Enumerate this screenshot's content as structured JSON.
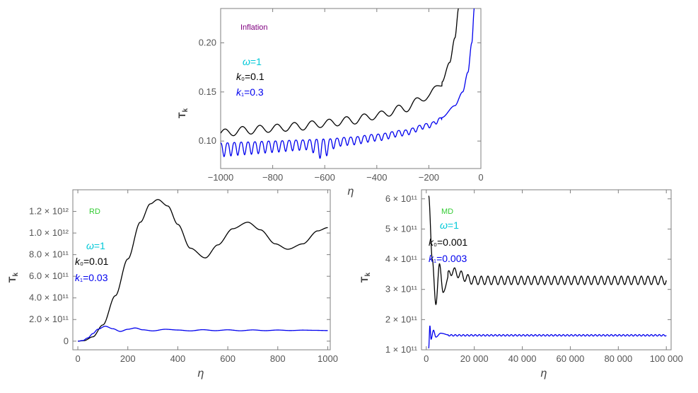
{
  "chart_data": [
    {
      "id": "inflation",
      "type": "line",
      "title": "Inflation",
      "title_color": "#800080",
      "xlabel": "η",
      "ylabel": "T_k",
      "xlim": [
        -1000,
        0
      ],
      "ylim": [
        0.072,
        0.235
      ],
      "xticks": [
        -1000,
        -800,
        -600,
        -400,
        -200,
        0
      ],
      "xtick_labels": [
        "−1000",
        "−800",
        "−600",
        "−400",
        "−200",
        "0"
      ],
      "yticks": [
        0.1,
        0.15,
        0.2
      ],
      "ytick_labels": [
        "0.10",
        "0.15",
        "0.20"
      ],
      "annotations": [
        {
          "name": "omega",
          "text": "ω=1",
          "color": "#00c8d8"
        },
        {
          "name": "k0",
          "text": "k₀=0.1",
          "color": "#000000"
        },
        {
          "name": "k1",
          "text": "k₁=0.3",
          "color": "#0000ee"
        }
      ],
      "series": [
        {
          "name": "k0=0.1",
          "color": "#000000",
          "x": [
            -1000,
            -900,
            -800,
            -700,
            -600,
            -500,
            -400,
            -300,
            -200,
            -150,
            -120,
            -100,
            -85
          ],
          "y": [
            0.108,
            0.111,
            0.113,
            0.115,
            0.118,
            0.121,
            0.126,
            0.133,
            0.146,
            0.16,
            0.18,
            0.205,
            0.236
          ]
        },
        {
          "name": "k1=0.3",
          "color": "#0000ee",
          "x": [
            -1000,
            -900,
            -800,
            -700,
            -600,
            -500,
            -400,
            -300,
            -200,
            -150,
            -100,
            -70,
            -50,
            -35,
            -25
          ],
          "y": [
            0.098,
            0.099,
            0.1,
            0.101,
            0.102,
            0.104,
            0.107,
            0.111,
            0.118,
            0.124,
            0.136,
            0.15,
            0.17,
            0.2,
            0.236
          ]
        }
      ]
    },
    {
      "id": "rd",
      "type": "line",
      "title": "RD",
      "title_color": "#33cc33",
      "xlabel": "η",
      "ylabel": "T_k",
      "xlim": [
        -20,
        1010
      ],
      "ylim": [
        -80000000000.0,
        1400000000000.0
      ],
      "xticks": [
        0,
        200,
        400,
        600,
        800,
        1000
      ],
      "xtick_labels": [
        "0",
        "200",
        "400",
        "600",
        "800",
        "1000"
      ],
      "yticks": [
        0,
        200000000000.0,
        400000000000.0,
        600000000000.0,
        800000000000.0,
        1000000000000.0,
        1200000000000.0
      ],
      "ytick_labels": [
        "0",
        "2.0 × 10¹¹",
        "4.0 × 10¹¹",
        "6.0 × 10¹¹",
        "8.0 × 10¹¹",
        "1.0 × 10¹²",
        "1.2 × 10¹²"
      ],
      "annotations": [
        {
          "name": "omega",
          "text": "ω=1",
          "color": "#00c8d8"
        },
        {
          "name": "k0",
          "text": "k₀=0.01",
          "color": "#000000"
        },
        {
          "name": "k1",
          "text": "k₁=0.03",
          "color": "#0000ee"
        }
      ],
      "series": [
        {
          "name": "k0=0.01",
          "color": "#000000",
          "x": [
            0,
            25,
            60,
            100,
            150,
            200,
            250,
            290,
            320,
            360,
            400,
            450,
            510,
            560,
            620,
            680,
            730,
            790,
            840,
            900,
            960,
            1000
          ],
          "y": [
            0,
            5000000000.0,
            40000000000.0,
            150000000000.0,
            420000000000.0,
            760000000000.0,
            1100000000000.0,
            1270000000000.0,
            1310000000000.0,
            1250000000000.0,
            1080000000000.0,
            860000000000.0,
            770000000000.0,
            890000000000.0,
            1040000000000.0,
            1100000000000.0,
            1030000000000.0,
            900000000000.0,
            850000000000.0,
            900000000000.0,
            1020000000000.0,
            1050000000000.0
          ]
        },
        {
          "name": "k1=0.03",
          "color": "#0000ee",
          "x": [
            0,
            20,
            40,
            60,
            80,
            110,
            140,
            170,
            200,
            230,
            260,
            300,
            350,
            400,
            450,
            500,
            550,
            600,
            650,
            700,
            750,
            800,
            850,
            900,
            950,
            1000
          ],
          "y": [
            0,
            6000000000.0,
            30000000000.0,
            70000000000.0,
            110000000000.0,
            138000000000.0,
            115000000000.0,
            90000000000.0,
            110000000000.0,
            122000000000.0,
            105000000000.0,
            95000000000.0,
            110000000000.0,
            103000000000.0,
            95000000000.0,
            106000000000.0,
            97000000000.0,
            105000000000.0,
            96000000000.0,
            104000000000.0,
            97000000000.0,
            103000000000.0,
            98000000000.0,
            102000000000.0,
            100000000000.0,
            98000000000.0
          ]
        }
      ]
    },
    {
      "id": "md",
      "type": "line",
      "title": "MD",
      "title_color": "#33cc33",
      "xlabel": "η",
      "ylabel": "T_k",
      "xlim": [
        -2000,
        102000
      ],
      "ylim": [
        100000000000.0,
        630000000000.0
      ],
      "xticks": [
        0,
        20000,
        40000,
        60000,
        80000,
        100000
      ],
      "xtick_labels": [
        "0",
        "20 000",
        "40 000",
        "60 000",
        "80 000",
        "100 000"
      ],
      "yticks": [
        100000000000.0,
        200000000000.0,
        300000000000.0,
        400000000000.0,
        500000000000.0,
        600000000000.0
      ],
      "ytick_labels": [
        "1 × 10¹¹",
        "2 × 10¹¹",
        "3 × 10¹¹",
        "4 × 10¹¹",
        "5 × 10¹¹",
        "6 × 10¹¹"
      ],
      "annotations": [
        {
          "name": "omega",
          "text": "ω=1",
          "color": "#00c8d8"
        },
        {
          "name": "k0",
          "text": "k₀=0.001",
          "color": "#000000"
        },
        {
          "name": "k1",
          "text": "k₁=0.003",
          "color": "#0000ee"
        }
      ],
      "series": [
        {
          "name": "k0=0.001",
          "color": "#000000",
          "x": [
            1000,
            2500,
            4000,
            5500,
            7000,
            10000,
            20000,
            40000,
            60000,
            80000,
            100000
          ],
          "y": [
            610000000000.0,
            400000000000.0,
            250000000000.0,
            385000000000.0,
            290000000000.0,
            360000000000.0,
            330000000000.0,
            330000000000.0,
            330000000000.0,
            330000000000.0,
            330000000000.0
          ]
        },
        {
          "name": "k1=0.003",
          "color": "#0000ee",
          "x": [
            1000,
            1500,
            2000,
            3000,
            4000,
            6000,
            10000,
            20000,
            40000,
            60000,
            80000,
            100000
          ],
          "y": [
            105000000000.0,
            180000000000.0,
            135000000000.0,
            165000000000.0,
            142000000000.0,
            155000000000.0,
            148000000000.0,
            148000000000.0,
            148000000000.0,
            148000000000.0,
            148000000000.0,
            148000000000.0
          ]
        }
      ]
    }
  ]
}
